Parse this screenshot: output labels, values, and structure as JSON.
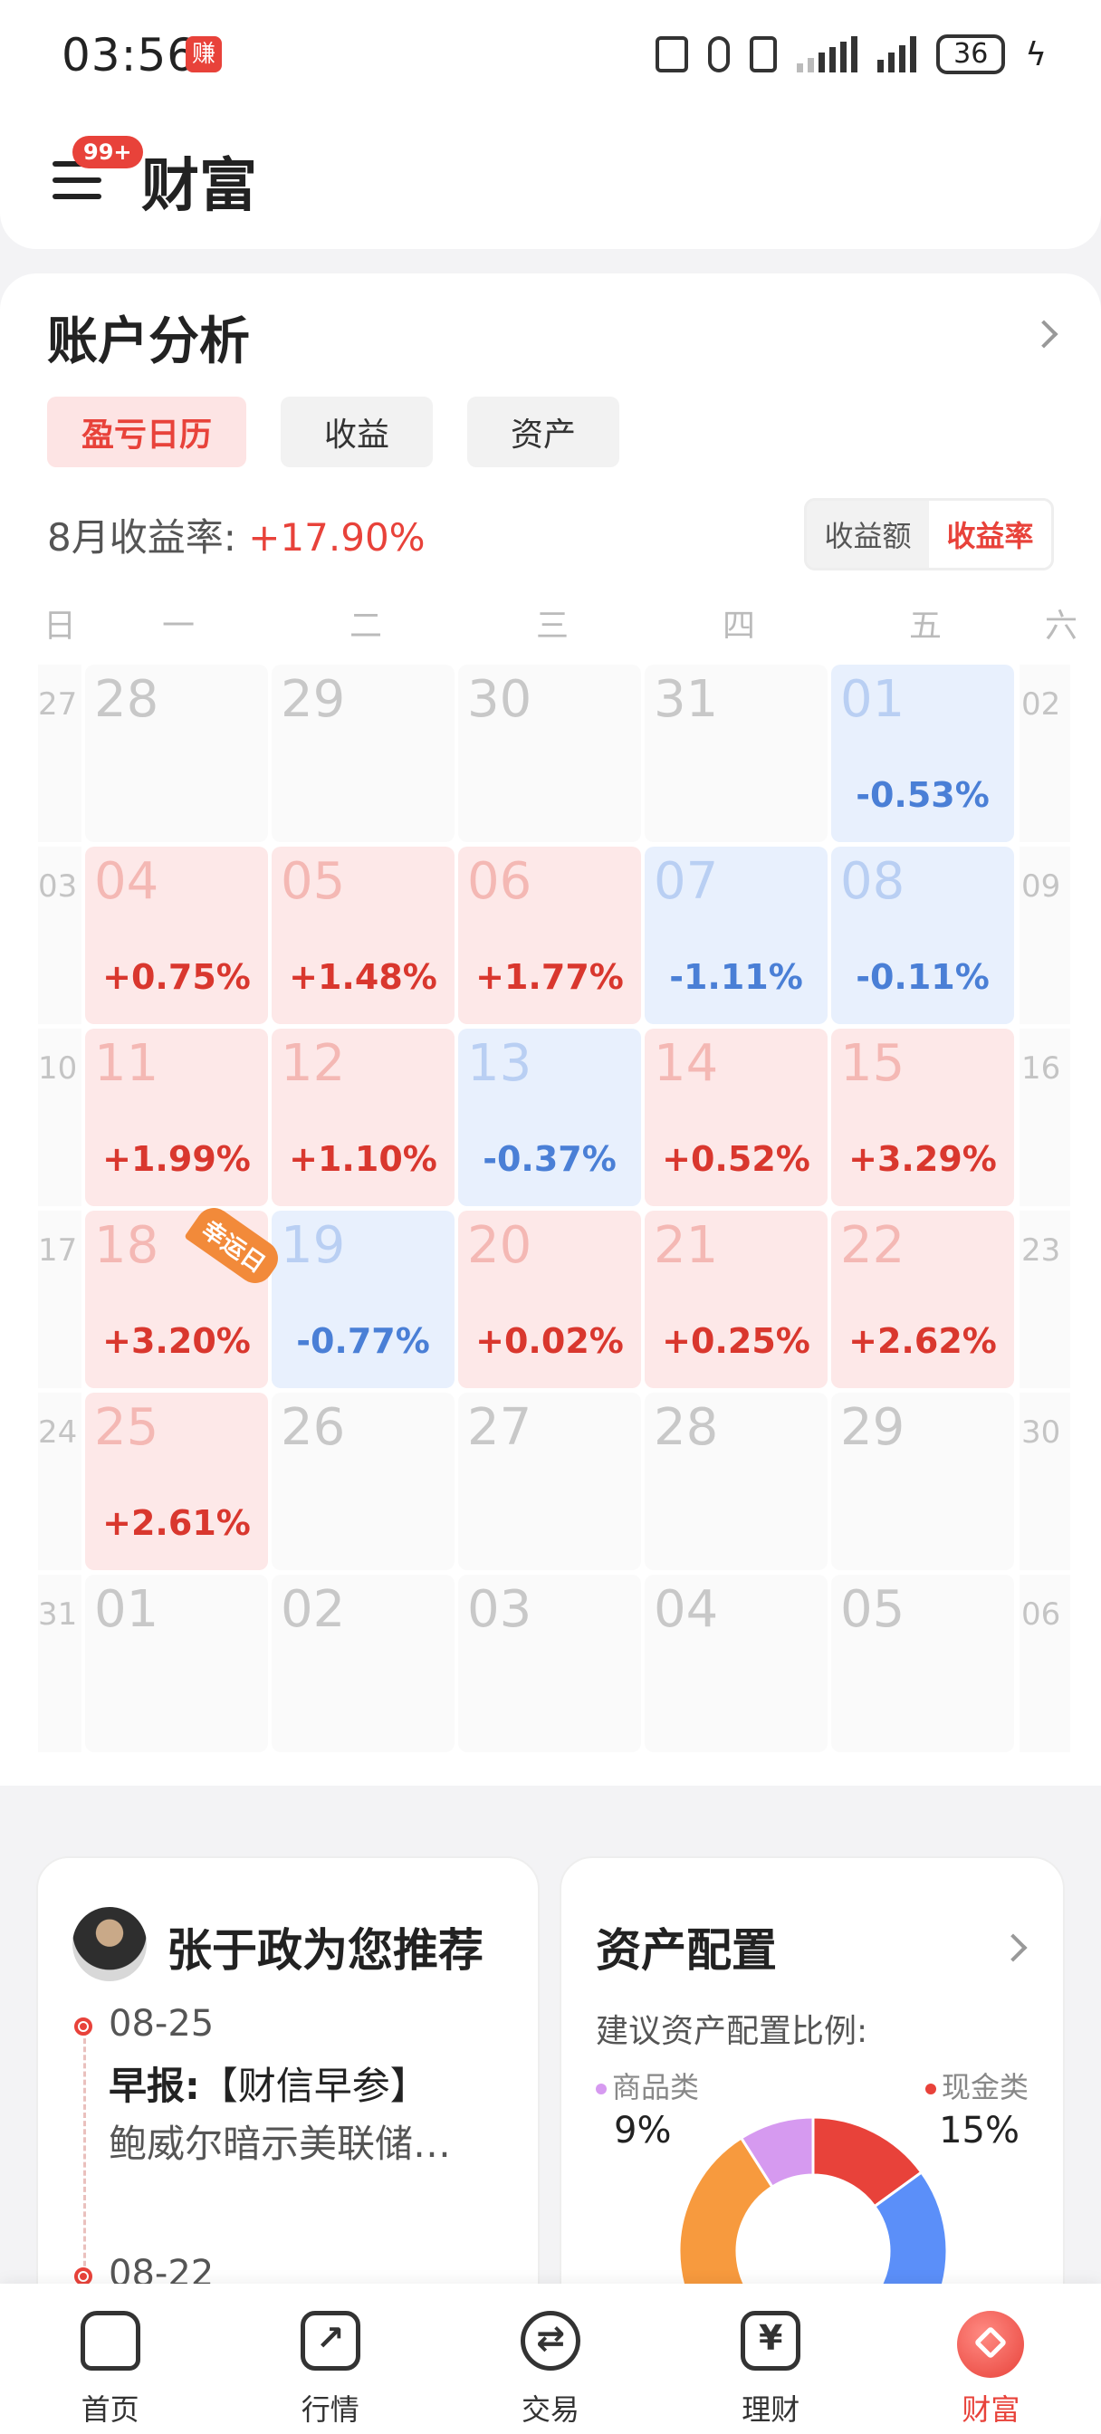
{
  "status_bar": {
    "time": "03:56",
    "earn_badge": "赚",
    "battery": "36"
  },
  "header": {
    "title": "财富",
    "badge": "99+"
  },
  "account": {
    "title": "账户分析",
    "tabs": [
      "盈亏日历",
      "收益",
      "资产"
    ],
    "active_tab": 0,
    "rate_label": "8月收益率: ",
    "rate_value": "+17.90%",
    "toggle": [
      "收益额",
      "收益率"
    ],
    "toggle_active": 1,
    "weekdays": [
      "日",
      "一",
      "二",
      "三",
      "四",
      "五",
      "六"
    ],
    "weeks": [
      {
        "sun": "27",
        "sat": "02",
        "days": [
          {
            "d": "28",
            "p": "",
            "t": "none"
          },
          {
            "d": "29",
            "p": "",
            "t": "none"
          },
          {
            "d": "30",
            "p": "",
            "t": "none"
          },
          {
            "d": "31",
            "p": "",
            "t": "none"
          },
          {
            "d": "01",
            "p": "-0.53%",
            "t": "neg"
          }
        ]
      },
      {
        "sun": "03",
        "sat": "09",
        "days": [
          {
            "d": "04",
            "p": "+0.75%",
            "t": "pos"
          },
          {
            "d": "05",
            "p": "+1.48%",
            "t": "pos"
          },
          {
            "d": "06",
            "p": "+1.77%",
            "t": "pos"
          },
          {
            "d": "07",
            "p": "-1.11%",
            "t": "neg"
          },
          {
            "d": "08",
            "p": "-0.11%",
            "t": "neg"
          }
        ]
      },
      {
        "sun": "10",
        "sat": "16",
        "days": [
          {
            "d": "11",
            "p": "+1.99%",
            "t": "pos"
          },
          {
            "d": "12",
            "p": "+1.10%",
            "t": "pos"
          },
          {
            "d": "13",
            "p": "-0.37%",
            "t": "neg"
          },
          {
            "d": "14",
            "p": "+0.52%",
            "t": "pos"
          },
          {
            "d": "15",
            "p": "+3.29%",
            "t": "pos"
          }
        ]
      },
      {
        "sun": "17",
        "sat": "23",
        "days": [
          {
            "d": "18",
            "p": "+3.20%",
            "t": "pos"
          },
          {
            "d": "19",
            "p": "-0.77%",
            "t": "neg"
          },
          {
            "d": "20",
            "p": "+0.02%",
            "t": "pos"
          },
          {
            "d": "21",
            "p": "+0.25%",
            "t": "pos"
          },
          {
            "d": "22",
            "p": "+2.62%",
            "t": "pos"
          }
        ]
      },
      {
        "sun": "24",
        "sat": "30",
        "days": [
          {
            "d": "25",
            "p": "+2.61%",
            "t": "pos"
          },
          {
            "d": "26",
            "p": "",
            "t": "none"
          },
          {
            "d": "27",
            "p": "",
            "t": "none"
          },
          {
            "d": "28",
            "p": "",
            "t": "none"
          },
          {
            "d": "29",
            "p": "",
            "t": "none"
          }
        ]
      },
      {
        "sun": "31",
        "sat": "06",
        "days": [
          {
            "d": "01",
            "p": "",
            "t": "none"
          },
          {
            "d": "02",
            "p": "",
            "t": "none"
          },
          {
            "d": "03",
            "p": "",
            "t": "none"
          },
          {
            "d": "04",
            "p": "",
            "t": "none"
          },
          {
            "d": "05",
            "p": "",
            "t": "none"
          }
        ]
      }
    ],
    "lucky_label": "幸运日"
  },
  "recommend": {
    "title": "张于政为您推荐",
    "items": [
      {
        "date": "08-25",
        "kind": "早报:",
        "tag": "【财信早参】",
        "body": "鲍威尔暗示美联储…"
      },
      {
        "date": "08-22"
      }
    ]
  },
  "allocation": {
    "title": "资产配置",
    "subtitle": "建议资产配置比例:",
    "items": [
      {
        "name": "商品类",
        "pct": "9%",
        "color": "#d69af0"
      },
      {
        "name": "现金类",
        "pct": "15%",
        "color": "#e8423a"
      }
    ],
    "donut": [
      {
        "color": "#e8423a",
        "value": 15
      },
      {
        "color": "#5b8ff9",
        "value": 24
      },
      {
        "color": "#5b8ff9",
        "value": 16
      },
      {
        "color": "#f79a3e",
        "value": 36
      },
      {
        "color": "#d69af0",
        "value": 9
      }
    ]
  },
  "nav": [
    {
      "label": "首页",
      "icon": "home-icon"
    },
    {
      "label": "行情",
      "icon": "chart-icon"
    },
    {
      "label": "交易",
      "icon": "exchange-icon"
    },
    {
      "label": "理财",
      "icon": "yen-icon"
    },
    {
      "label": "财富",
      "icon": "wealth-icon"
    }
  ]
}
